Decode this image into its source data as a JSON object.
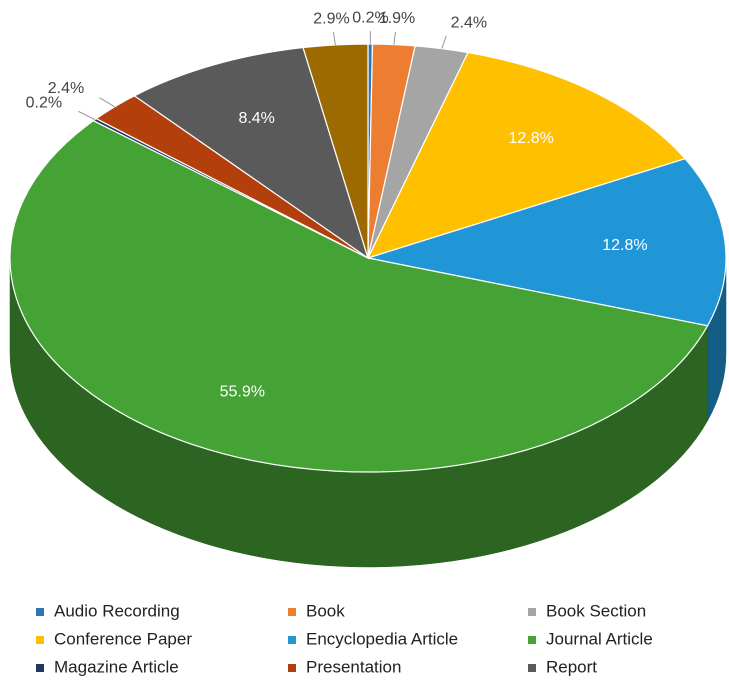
{
  "chart_data": {
    "type": "pie",
    "categories": [
      "Audio Recording",
      "Book",
      "Book Section",
      "Conference Paper",
      "Encyclopedia Article",
      "Journal Article",
      "Magazine Article",
      "Presentation",
      "Report",
      null
    ],
    "values": [
      0.2,
      1.9,
      2.4,
      12.8,
      12.8,
      55.9,
      0.2,
      2.4,
      8.4,
      2.9
    ],
    "value_labels": [
      "0.2%",
      "1.9%",
      "2.4%",
      "12.8%",
      "12.8%",
      "55.9%",
      "0.2%",
      "2.4%",
      "8.4%",
      "2.9%"
    ],
    "colors": [
      "#2e75b6",
      "#ed7d31",
      "#a5a5a5",
      "#ffc000",
      "#2196d6",
      "#45a335",
      "#1f3864",
      "#b33f0c",
      "#5a5a5a",
      "#9c6a00"
    ],
    "legend": "bottom"
  }
}
